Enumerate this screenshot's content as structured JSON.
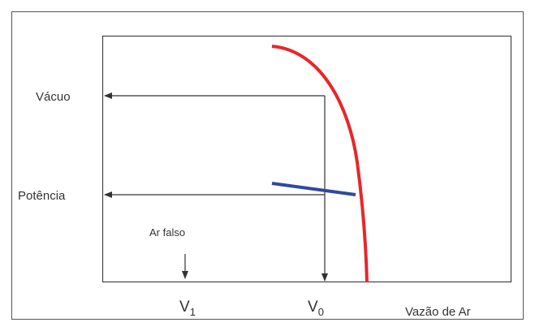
{
  "labels": {
    "vacuum": "Vácuo",
    "power": "Potência",
    "false_air": "Ar falso",
    "v1": {
      "main": "V",
      "sub": "1"
    },
    "v0": {
      "main": "V",
      "sub": "0"
    },
    "x_axis": "Vazão de Ar"
  }
}
